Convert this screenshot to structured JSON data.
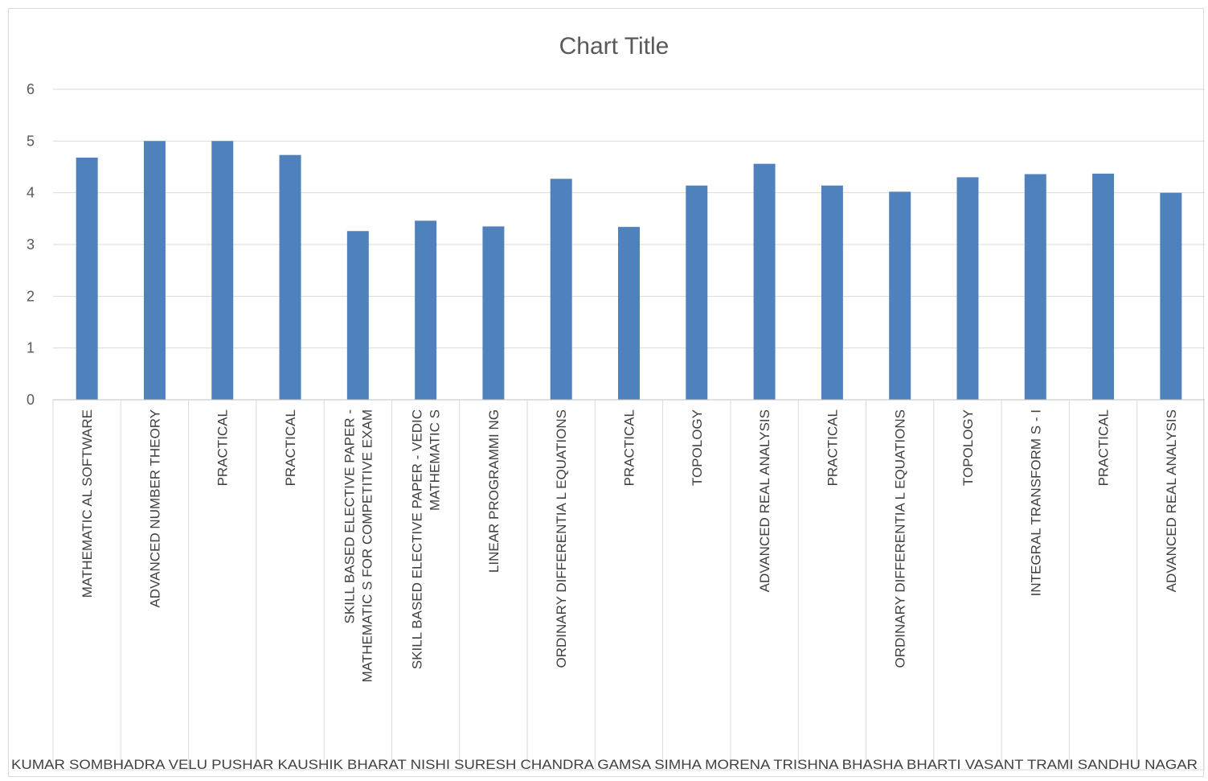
{
  "chart_data": {
    "type": "bar",
    "title": "Chart Title",
    "ylim": [
      0,
      6
    ],
    "y_ticks": [
      "0",
      "1",
      "2",
      "3",
      "4",
      "5",
      "6"
    ],
    "grid": true,
    "legend": "none",
    "bar_color": "#4f81bd",
    "categories": [
      [
        "MATHEMATIC AL SOFTWARE"
      ],
      [
        "ADVANCED NUMBER THEORY"
      ],
      [
        "PRACTICAL"
      ],
      [
        "PRACTICAL"
      ],
      [
        "SKILL BASED ELECTIVE PAPER -",
        "MATHEMATIC S FOR COMPETITIVE EXAM"
      ],
      [
        "SKILL BASED ELECTIVE PAPER - VEDIC",
        "MATHEMATIC S"
      ],
      [
        "LINEAR PROGRAMMI NG"
      ],
      [
        "ORDINARY DIFFERENTIA L EQUATIONS"
      ],
      [
        "PRACTICAL"
      ],
      [
        "TOPOLOGY"
      ],
      [
        "ADVANCED REAL ANALYSIS"
      ],
      [
        "PRACTICAL"
      ],
      [
        "ORDINARY DIFFERENTIA L EQUATIONS"
      ],
      [
        "TOPOLOGY"
      ],
      [
        "INTEGRAL TRANSFORM S - I"
      ],
      [
        "PRACTICAL"
      ],
      [
        "ADVANCED REAL ANALYSIS"
      ]
    ],
    "values": [
      4.68,
      5.0,
      5.0,
      4.73,
      3.26,
      3.46,
      3.35,
      4.27,
      3.34,
      4.14,
      4.56,
      4.14,
      4.02,
      4.3,
      4.36,
      4.37,
      4.0
    ],
    "group_label_text": "KUMAR SOMBHADRA VELU PUSHAR KAUSHIK BHARAT NISHI SURESH CHANDRA GAMSA SIMHA MORENA TRISHNA BHASHA BHARTI VASANT TRAMI SANDHU NAGAR",
    "group_dividers_after": [
      0,
      3,
      5,
      8,
      13,
      16
    ]
  }
}
